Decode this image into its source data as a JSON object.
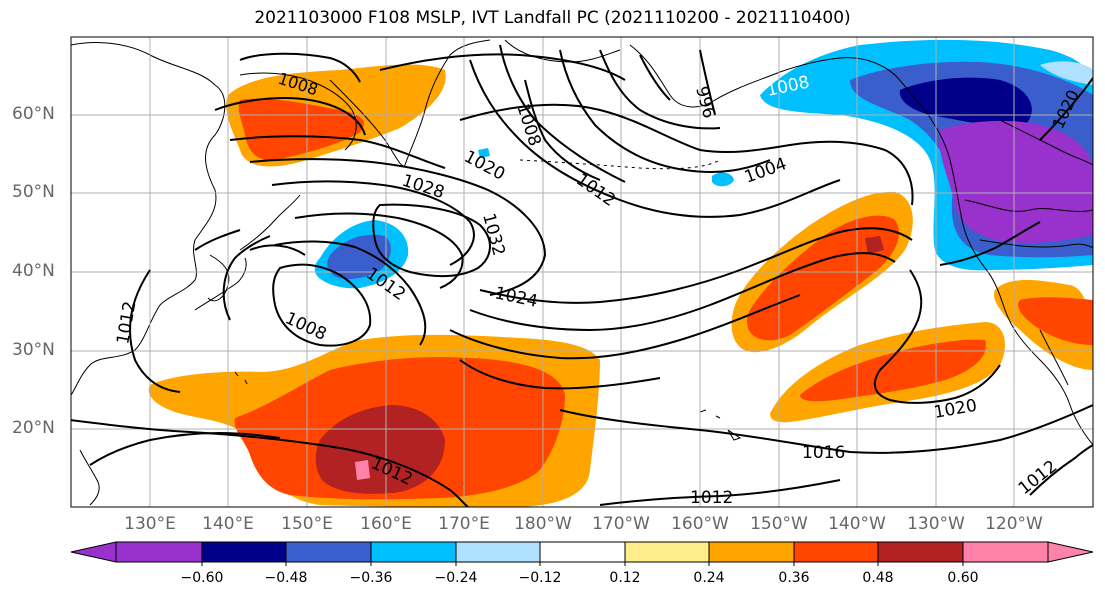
{
  "title": "2021103000 F108 MSLP, IVT Landfall PC (2021110200 - 2021110400)",
  "lat_labels": [
    "60°N",
    "50°N",
    "40°N",
    "30°N",
    "20°N"
  ],
  "lon_labels": [
    "130°E",
    "140°E",
    "150°E",
    "160°E",
    "170°E",
    "180°W",
    "170°W",
    "160°W",
    "150°W",
    "140°W",
    "130°W",
    "120°W"
  ],
  "isobar_labels": [
    "1008",
    "1008",
    "996",
    "1008",
    "1020",
    "1012",
    "1028",
    "1032",
    "1004",
    "1012",
    "1024",
    "1008",
    "1012",
    "1016",
    "1012",
    "1020",
    "1012",
    "1020",
    "1012"
  ],
  "colorbar": {
    "ticks": [
      "−0.60",
      "−0.48",
      "−0.36",
      "−0.24",
      "−0.12",
      "0.12",
      "0.24",
      "0.36",
      "0.48",
      "0.60"
    ],
    "colors": [
      "#9932cc",
      "#00008b",
      "#3a5fcd",
      "#00bfff",
      "#b0e2ff",
      "#ffffff",
      "#ffec8b",
      "#ffa500",
      "#ff4500",
      "#b22222",
      "#ff82ab"
    ]
  },
  "colors": {
    "grid": "#b0b0b0",
    "coast": "#000000",
    "contour": "#000000"
  }
}
